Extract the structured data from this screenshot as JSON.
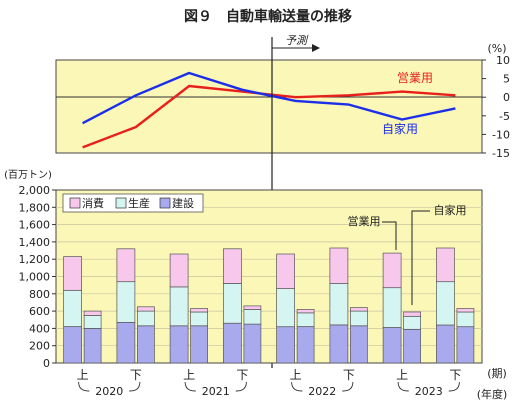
{
  "chart_data": [
    {
      "type": "line",
      "title": "図９　自動車輸送量の推移",
      "unit_label": "(%)",
      "forecast_label": "予測",
      "ylim": [
        -15,
        10
      ],
      "y_ticks": [
        "10",
        "5",
        "0",
        "-5",
        "-10",
        "-15"
      ],
      "grid": false,
      "series": [
        {
          "name": "営業用",
          "color": "#e8201c",
          "values": [
            -13.5,
            -8,
            3,
            1.5,
            0,
            0.5,
            1.5,
            0.5
          ]
        },
        {
          "name": "自家用",
          "color": "#1c2ee8",
          "values": [
            -7,
            0.5,
            6.5,
            2,
            -1,
            -2,
            -6,
            -3
          ]
        }
      ]
    },
    {
      "type": "bar",
      "stacked": true,
      "unit_label": "(百万トン)",
      "ylim": [
        0,
        2000
      ],
      "y_ticks": [
        "0",
        "200",
        "400",
        "600",
        "800",
        "1,000",
        "1,200",
        "1,400",
        "1,600",
        "1,800",
        "2,000"
      ],
      "legend": [
        "消費",
        "生産",
        "建設"
      ],
      "legend_position": "top-left",
      "bar_pair_labels": [
        "営業用",
        "自家用"
      ],
      "colors": {
        "消費": "#f7c8ec",
        "生産": "#d5f5f2",
        "建設": "#a9a9ee"
      },
      "categories": [
        "2020上",
        "2020下",
        "2021上",
        "2021下",
        "2022上",
        "2022下",
        "2023上",
        "2023下"
      ],
      "series": [
        {
          "group": "営業用",
          "建設": [
            420,
            470,
            430,
            460,
            420,
            440,
            410,
            440
          ],
          "生産": [
            420,
            470,
            450,
            460,
            440,
            480,
            460,
            500
          ],
          "消費": [
            390,
            380,
            380,
            400,
            400,
            410,
            400,
            390
          ]
        },
        {
          "group": "自家用",
          "建設": [
            400,
            430,
            430,
            450,
            420,
            430,
            390,
            420
          ],
          "生産": [
            150,
            170,
            160,
            170,
            160,
            170,
            150,
            170
          ],
          "消費": [
            50,
            50,
            40,
            40,
            40,
            40,
            50,
            40
          ]
        }
      ]
    }
  ],
  "x_axis": {
    "half_labels": [
      "上",
      "下",
      "上",
      "下",
      "上",
      "下",
      "上",
      "下"
    ],
    "year_labels": [
      "2020",
      "2021",
      "2022",
      "2023"
    ],
    "period_unit": "(期)",
    "year_unit": "(年度)"
  }
}
